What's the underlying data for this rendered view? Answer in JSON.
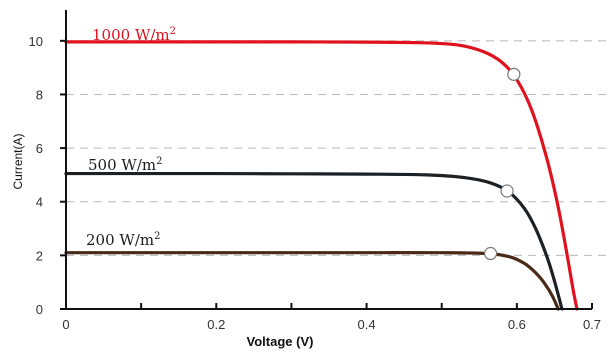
{
  "chart_data": {
    "type": "line",
    "title": "",
    "xlabel": "Voltage  (V)",
    "ylabel": "Current(A)",
    "xlim": [
      0,
      0.7
    ],
    "ylim": [
      0,
      11
    ],
    "x_ticks": [
      0,
      0.1,
      0.2,
      0.3,
      0.4,
      0.5,
      0.6,
      0.7
    ],
    "x_tick_labels": [
      "0",
      "",
      "0.2",
      "",
      "0.4",
      "",
      "0.6",
      "0.7"
    ],
    "y_ticks": [
      0,
      2,
      4,
      6,
      8,
      10
    ],
    "y_tick_labels": [
      "0",
      "2",
      "4",
      "6",
      "8",
      "10"
    ],
    "grid": "horizontal dashed",
    "legend": "none",
    "series": [
      {
        "name": "1000 W/m2",
        "label_base": "1000  W/m",
        "label_sup": "2",
        "color": "#e0121e",
        "x": [
          0,
          0.1,
          0.2,
          0.3,
          0.4,
          0.47,
          0.52,
          0.555,
          0.58,
          0.6,
          0.62,
          0.64,
          0.655,
          0.667,
          0.675,
          0.68
        ],
        "y": [
          9.96,
          9.96,
          9.96,
          9.96,
          9.95,
          9.93,
          9.85,
          9.6,
          9.2,
          8.55,
          7.4,
          5.6,
          3.8,
          2.0,
          0.7,
          0
        ],
        "mpp": {
          "x": 0.596,
          "y": 8.75
        }
      },
      {
        "name": "500 W/m2",
        "label_base": "500  W/m",
        "label_sup": "2",
        "color": "#1c2126",
        "x": [
          0,
          0.1,
          0.2,
          0.3,
          0.4,
          0.48,
          0.53,
          0.565,
          0.59,
          0.61,
          0.625,
          0.64,
          0.65,
          0.66
        ],
        "y": [
          5.05,
          5.05,
          5.05,
          5.04,
          5.03,
          5.0,
          4.9,
          4.7,
          4.35,
          3.75,
          3.0,
          1.95,
          1.05,
          0
        ],
        "mpp": {
          "x": 0.587,
          "y": 4.4
        }
      },
      {
        "name": "200 W/m2",
        "label_base": "200  W/m",
        "label_sup": "2",
        "color": "#4a2a16",
        "x": [
          0,
          0.1,
          0.2,
          0.3,
          0.4,
          0.5,
          0.56,
          0.59,
          0.61,
          0.625,
          0.637,
          0.647,
          0.655
        ],
        "y": [
          2.1,
          2.1,
          2.1,
          2.1,
          2.1,
          2.1,
          2.07,
          1.95,
          1.7,
          1.35,
          0.95,
          0.5,
          0
        ],
        "mpp": {
          "x": 0.565,
          "y": 2.07
        }
      }
    ]
  }
}
